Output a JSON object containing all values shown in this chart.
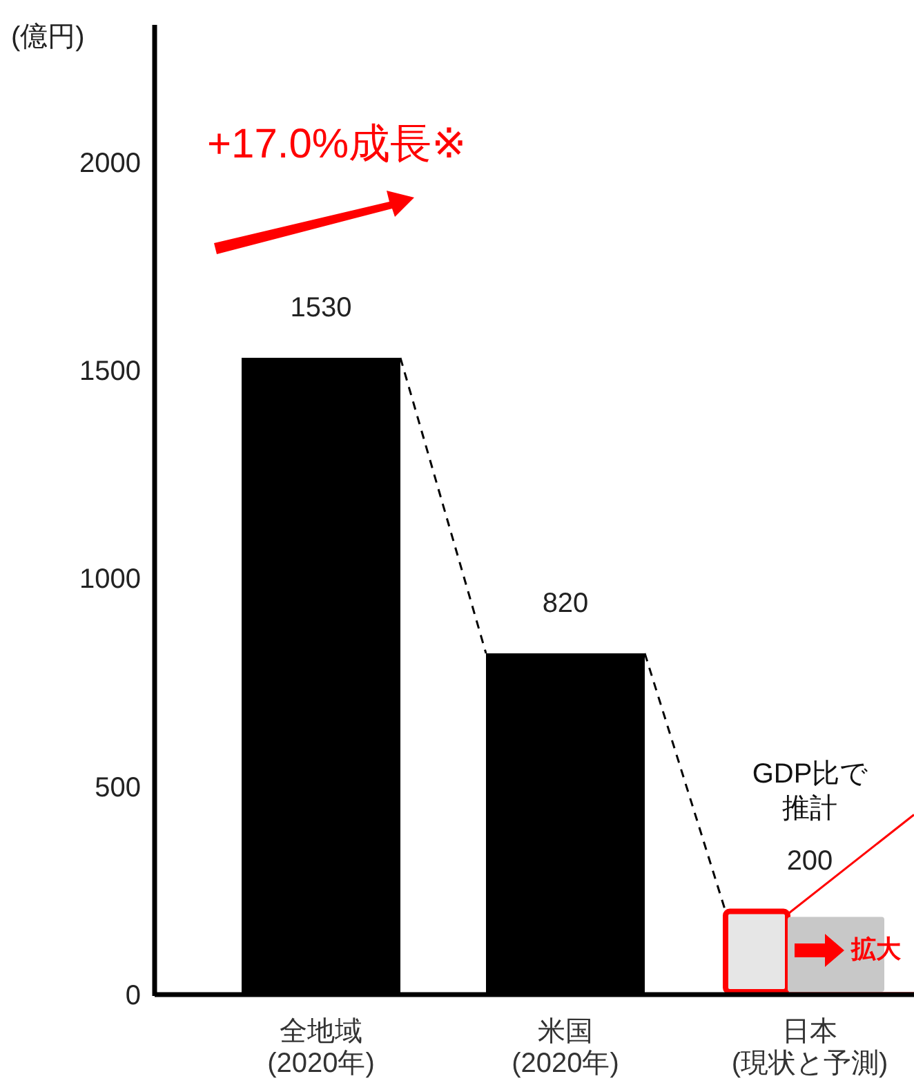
{
  "chart_data": {
    "type": "bar",
    "ylabel": "(億円)",
    "categories": [
      "全地域\n(2020年)",
      "米国\n(2020年)",
      "日本\n(現状と予測)"
    ],
    "values": [
      1530,
      820,
      200
    ],
    "colors": [
      "#000000",
      "#000000",
      "#e6e6e6"
    ],
    "ylim": [
      0,
      2330
    ],
    "yticks": [
      0,
      500,
      1000,
      1500,
      2000
    ],
    "data_labels": true,
    "grid": false,
    "annotations": [
      "+17.0%成長※",
      "GDP比で推計",
      "拡大"
    ]
  }
}
